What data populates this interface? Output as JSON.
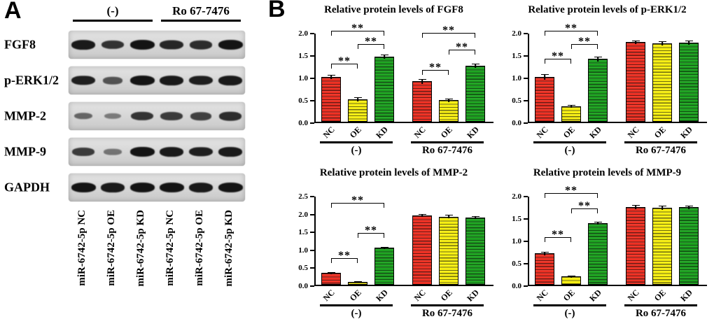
{
  "figure": {
    "panelA": {
      "label": "A",
      "group_headers": [
        "(-)",
        "Ro 67-7476"
      ],
      "rows": [
        {
          "label": "FGF8",
          "bands": [
            0.95,
            0.75,
            1.0,
            0.85,
            0.8,
            1.0
          ]
        },
        {
          "label": "p-ERK1/2",
          "bands": [
            0.9,
            0.5,
            1.0,
            0.95,
            0.9,
            0.95
          ]
        },
        {
          "label": "MMP-2",
          "bands": [
            0.35,
            0.18,
            0.75,
            0.7,
            0.65,
            0.8
          ]
        },
        {
          "label": "MMP-9",
          "bands": [
            0.7,
            0.25,
            1.0,
            0.95,
            0.9,
            0.95
          ]
        },
        {
          "label": "GAPDH",
          "bands": [
            1.0,
            0.95,
            1.0,
            1.0,
            0.95,
            1.0
          ]
        }
      ],
      "lane_labels": [
        "miR-6742-5p NC",
        "miR-6742-5p OE",
        "miR-6742-5p KD",
        "miR-6742-5p NC",
        "miR-6742-5p OE",
        "miR-6742-5p KD"
      ]
    },
    "panelB": {
      "label": "B"
    }
  },
  "colors": {
    "nc": "#ee3124",
    "oe": "#f7ef13",
    "kd": "#1ea321",
    "axis": "#000000"
  },
  "chart_data": [
    {
      "type": "bar",
      "title": "Relative protein levels of FGF8",
      "groups": [
        "(-)",
        "Ro 67-7476"
      ],
      "categories": [
        "NC",
        "OE",
        "KD"
      ],
      "ylim": [
        0,
        2.0
      ],
      "yticks": [
        0.0,
        0.5,
        1.0,
        1.5,
        2.0
      ],
      "series": [
        {
          "name": "(-)",
          "values": [
            1.0,
            0.5,
            1.45
          ],
          "errors": [
            0.05,
            0.04,
            0.05
          ]
        },
        {
          "name": "Ro 67-7476",
          "values": [
            0.9,
            0.48,
            1.25
          ],
          "errors": [
            0.05,
            0.04,
            0.04
          ]
        }
      ],
      "significance": [
        {
          "bars": [
            0,
            1
          ],
          "y": 1.18,
          "label": "**"
        },
        {
          "bars": [
            1,
            2
          ],
          "y": 1.62,
          "label": "**"
        },
        {
          "bars": [
            0,
            2
          ],
          "y": 1.92,
          "label": "**"
        },
        {
          "bars": [
            3,
            4
          ],
          "y": 1.05,
          "label": "**"
        },
        {
          "bars": [
            4,
            5
          ],
          "y": 1.5,
          "label": "**"
        },
        {
          "bars": [
            3,
            5
          ],
          "y": 1.88,
          "label": "**"
        }
      ]
    },
    {
      "type": "bar",
      "title": "Relative protein levels of p-ERK1/2",
      "groups": [
        "(-)",
        "Ro 67-7476"
      ],
      "categories": [
        "NC",
        "OE",
        "KD"
      ],
      "ylim": [
        0,
        2.0
      ],
      "yticks": [
        0.0,
        0.5,
        1.0,
        1.5,
        2.0
      ],
      "series": [
        {
          "name": "(-)",
          "values": [
            1.0,
            0.35,
            1.4
          ],
          "errors": [
            0.07,
            0.03,
            0.06
          ]
        },
        {
          "name": "Ro 67-7476",
          "values": [
            1.78,
            1.75,
            1.77
          ],
          "errors": [
            0.04,
            0.05,
            0.05
          ]
        }
      ],
      "significance": [
        {
          "bars": [
            0,
            1
          ],
          "y": 1.3,
          "label": "**"
        },
        {
          "bars": [
            1,
            2
          ],
          "y": 1.62,
          "label": "**"
        },
        {
          "bars": [
            0,
            2
          ],
          "y": 1.92,
          "label": "**"
        }
      ]
    },
    {
      "type": "bar",
      "title": "Relative protein levels of MMP-2",
      "groups": [
        "(-)",
        "Ro 67-7476"
      ],
      "categories": [
        "NC",
        "OE",
        "KD"
      ],
      "ylim": [
        0,
        2.5
      ],
      "yticks": [
        0.0,
        0.5,
        1.0,
        1.5,
        2.0,
        2.5
      ],
      "series": [
        {
          "name": "(-)",
          "values": [
            0.33,
            0.08,
            1.03
          ],
          "errors": [
            0.03,
            0.02,
            0.03
          ]
        },
        {
          "name": "Ro 67-7476",
          "values": [
            1.93,
            1.9,
            1.88
          ],
          "errors": [
            0.04,
            0.05,
            0.04
          ]
        }
      ],
      "significance": [
        {
          "bars": [
            0,
            1
          ],
          "y": 0.6,
          "label": "**"
        },
        {
          "bars": [
            1,
            2
          ],
          "y": 1.3,
          "label": "**"
        },
        {
          "bars": [
            0,
            2
          ],
          "y": 2.15,
          "label": "**"
        }
      ]
    },
    {
      "type": "bar",
      "title": "Relative protein levels of MMP-9",
      "groups": [
        "(-)",
        "Ro 67-7476"
      ],
      "categories": [
        "NC",
        "OE",
        "KD"
      ],
      "ylim": [
        0,
        2.0
      ],
      "yticks": [
        0.0,
        0.5,
        1.0,
        1.5,
        2.0
      ],
      "series": [
        {
          "name": "(-)",
          "values": [
            0.7,
            0.18,
            1.37
          ],
          "errors": [
            0.04,
            0.02,
            0.03
          ]
        },
        {
          "name": "Ro 67-7476",
          "values": [
            1.73,
            1.72,
            1.73
          ],
          "errors": [
            0.05,
            0.05,
            0.04
          ]
        }
      ],
      "significance": [
        {
          "bars": [
            0,
            1
          ],
          "y": 0.95,
          "label": "**"
        },
        {
          "bars": [
            1,
            2
          ],
          "y": 1.6,
          "label": "**"
        },
        {
          "bars": [
            0,
            2
          ],
          "y": 1.93,
          "label": "**"
        }
      ]
    }
  ]
}
